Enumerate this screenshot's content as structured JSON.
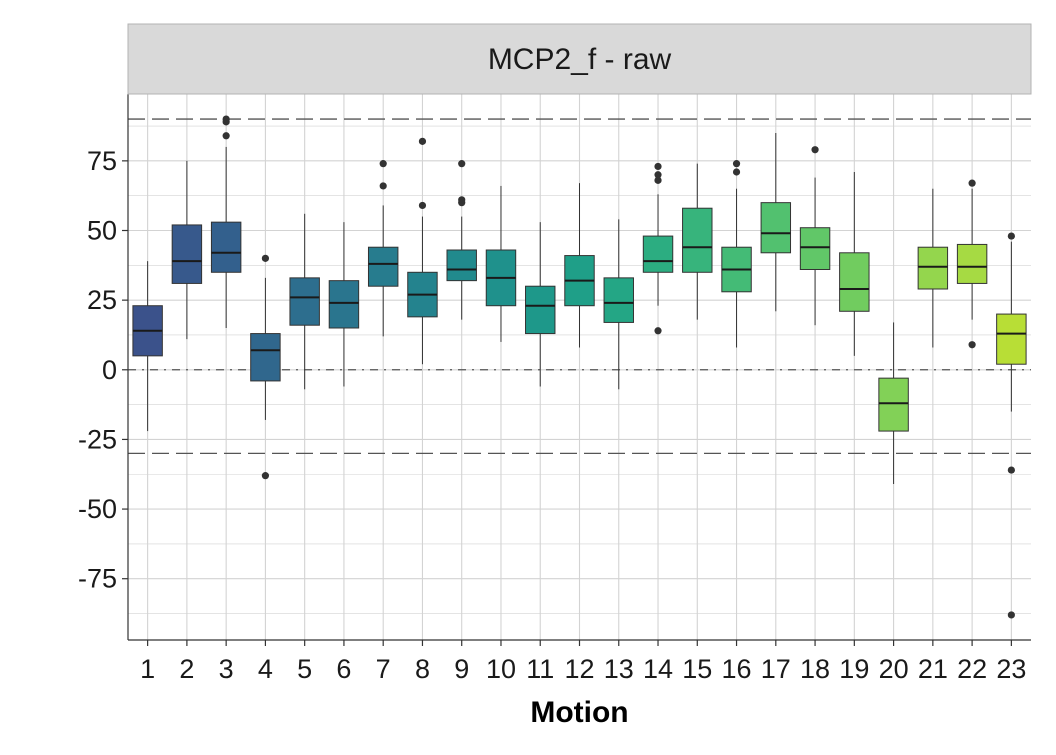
{
  "chart_data": {
    "type": "boxplot",
    "title": "MCP2_f - raw",
    "xlabel": "Motion",
    "ylabel": "",
    "ylim": [
      -97,
      99
    ],
    "y_ticks": [
      -75,
      -50,
      -25,
      0,
      25,
      50,
      75
    ],
    "y_tick_labels": [
      "-75",
      "-50",
      "-25",
      "0",
      "25",
      "50",
      "75"
    ],
    "grid": true,
    "reference_lines": [
      {
        "y": 90,
        "style": "dashed"
      },
      {
        "y": -30,
        "style": "dashed"
      },
      {
        "y": 0,
        "style": "dotdash"
      }
    ],
    "colors": {
      "strip_background": "#d9d9d9",
      "panel_border": "#333333",
      "grid": "#d3d3d3",
      "reference_line": "#555555",
      "outlier": "#333333"
    },
    "categories": [
      "1",
      "2",
      "3",
      "4",
      "5",
      "6",
      "7",
      "8",
      "9",
      "10",
      "11",
      "12",
      "13",
      "14",
      "15",
      "16",
      "17",
      "18",
      "19",
      "20",
      "21",
      "22",
      "23"
    ],
    "boxes": [
      {
        "category": "1",
        "min": -22,
        "q1": 5,
        "median": 14,
        "q3": 23,
        "max": 39,
        "outliers": [],
        "color": "#3b528b"
      },
      {
        "category": "2",
        "min": 11,
        "q1": 31,
        "median": 39,
        "q3": 52,
        "max": 75,
        "outliers": [],
        "color": "#37598c"
      },
      {
        "category": "3",
        "min": 15,
        "q1": 35,
        "median": 42,
        "q3": 53,
        "max": 80,
        "outliers": [
          84,
          89,
          90
        ],
        "color": "#33608d"
      },
      {
        "category": "4",
        "min": -18,
        "q1": -4,
        "median": 7,
        "q3": 13,
        "max": 33,
        "outliers": [
          40,
          -38
        ],
        "color": "#30678d"
      },
      {
        "category": "5",
        "min": -7,
        "q1": 16,
        "median": 26,
        "q3": 33,
        "max": 56,
        "outliers": [],
        "color": "#2d6e8e"
      },
      {
        "category": "6",
        "min": -6,
        "q1": 15,
        "median": 24,
        "q3": 32,
        "max": 53,
        "outliers": [],
        "color": "#2a758e"
      },
      {
        "category": "7",
        "min": 12,
        "q1": 30,
        "median": 38,
        "q3": 44,
        "max": 59,
        "outliers": [
          66,
          74
        ],
        "color": "#277c8e"
      },
      {
        "category": "8",
        "min": 2,
        "q1": 19,
        "median": 27,
        "q3": 35,
        "max": 55,
        "outliers": [
          59,
          82
        ],
        "color": "#24838e"
      },
      {
        "category": "9",
        "min": 18,
        "q1": 32,
        "median": 36,
        "q3": 43,
        "max": 55,
        "outliers": [
          60,
          61,
          74
        ],
        "color": "#218a8d"
      },
      {
        "category": "10",
        "min": 10,
        "q1": 23,
        "median": 33,
        "q3": 43,
        "max": 66,
        "outliers": [],
        "color": "#1f918c"
      },
      {
        "category": "11",
        "min": -6,
        "q1": 13,
        "median": 23,
        "q3": 30,
        "max": 53,
        "outliers": [],
        "color": "#1e988a"
      },
      {
        "category": "12",
        "min": 8,
        "q1": 23,
        "median": 32,
        "q3": 41,
        "max": 67,
        "outliers": [],
        "color": "#1f9f88"
      },
      {
        "category": "13",
        "min": -7,
        "q1": 17,
        "median": 24,
        "q3": 33,
        "max": 54,
        "outliers": [],
        "color": "#24a685"
      },
      {
        "category": "14",
        "min": 23,
        "q1": 35,
        "median": 39,
        "q3": 48,
        "max": 63,
        "outliers": [
          14,
          68,
          70,
          73
        ],
        "color": "#2cad81"
      },
      {
        "category": "15",
        "min": 18,
        "q1": 35,
        "median": 44,
        "q3": 58,
        "max": 74,
        "outliers": [],
        "color": "#37b47c"
      },
      {
        "category": "16",
        "min": 8,
        "q1": 28,
        "median": 36,
        "q3": 44,
        "max": 65,
        "outliers": [
          71,
          74
        ],
        "color": "#44bb76"
      },
      {
        "category": "17",
        "min": 21,
        "q1": 42,
        "median": 49,
        "q3": 60,
        "max": 85,
        "outliers": [],
        "color": "#52c16f"
      },
      {
        "category": "18",
        "min": 16,
        "q1": 36,
        "median": 44,
        "q3": 51,
        "max": 69,
        "outliers": [
          79
        ],
        "color": "#61c768"
      },
      {
        "category": "19",
        "min": 5,
        "q1": 21,
        "median": 29,
        "q3": 42,
        "max": 71,
        "outliers": [],
        "color": "#71cc5f"
      },
      {
        "category": "20",
        "min": -41,
        "q1": -22,
        "median": -12,
        "q3": -3,
        "max": 17,
        "outliers": [],
        "color": "#82d157"
      },
      {
        "category": "21",
        "min": 8,
        "q1": 29,
        "median": 37,
        "q3": 44,
        "max": 65,
        "outliers": [],
        "color": "#94d64d"
      },
      {
        "category": "22",
        "min": 18,
        "q1": 31,
        "median": 37,
        "q3": 45,
        "max": 65,
        "outliers": [
          67,
          9
        ],
        "color": "#a6da43"
      },
      {
        "category": "23",
        "min": -15,
        "q1": 2,
        "median": 13,
        "q3": 20,
        "max": 46,
        "outliers": [
          48,
          -36,
          -88
        ],
        "color": "#b8de36"
      }
    ]
  }
}
